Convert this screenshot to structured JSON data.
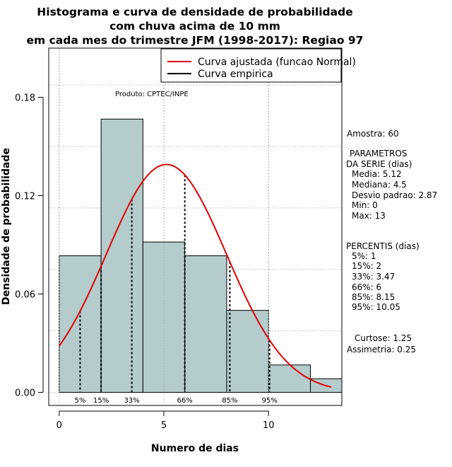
{
  "chart_data": {
    "type": "histogram",
    "title_lines": [
      "Histograma e curva de densidade de probabilidade",
      "com chuva acima de 10 mm",
      "em cada mes do trimestre JFM (1998-2017): Regiao 97"
    ],
    "xlabel": "Numero de dias",
    "ylabel": "Densidade de probabilidade",
    "xlim": [
      -0.5,
      13.5
    ],
    "ylim": [
      -0.008,
      0.21
    ],
    "x_ticks": [
      0,
      5,
      10
    ],
    "y_ticks": [
      0.0,
      0.06,
      0.12,
      0.18
    ],
    "y_tick_labels": [
      "0.00",
      "0.06",
      "0.12",
      "0.18"
    ],
    "bars": [
      {
        "x0": 0,
        "x1": 2,
        "value": 0.0833
      },
      {
        "x0": 2,
        "x1": 4,
        "value": 0.1667
      },
      {
        "x0": 4,
        "x1": 6,
        "value": 0.0917
      },
      {
        "x0": 6,
        "x1": 8,
        "value": 0.0833
      },
      {
        "x0": 8,
        "x1": 10,
        "value": 0.05
      },
      {
        "x0": 10,
        "x1": 12,
        "value": 0.0167
      },
      {
        "x0": 12,
        "x1": 14,
        "value": 0.0083
      }
    ],
    "bar_color": "#b5cccc",
    "curve_color": "#e00000",
    "normal_fit": {
      "mean": 5.12,
      "sd": 2.87,
      "x_from": 0,
      "x_to": 13
    },
    "legend": {
      "position": "top-right",
      "entries": [
        {
          "label": "Curva ajustada (funcao Normal)",
          "color": "#e00000"
        },
        {
          "label": "Curva empirica",
          "color": "#000000"
        }
      ]
    },
    "product_note": "Produto: CPTEC/INPE",
    "percentiles": [
      {
        "label": "5%",
        "x": 1
      },
      {
        "label": "15%",
        "x": 2
      },
      {
        "label": "33%",
        "x": 3.47
      },
      {
        "label": "66%",
        "x": 6
      },
      {
        "label": "85%",
        "x": 8.15
      },
      {
        "label": "95%",
        "x": 10.05
      }
    ],
    "side_panel": {
      "amostra": "Amostra: 60",
      "params_header_1": "PARAMETROS",
      "params_header_2": "DA SERIE (dias)",
      "params": [
        "Media: 5.12",
        "Mediana: 4.5",
        "Desvio padrao: 2.87",
        "Min: 0",
        "Max: 13"
      ],
      "percentis_header": "PERCENTIS (dias)",
      "percentis": [
        "5%: 1",
        "15%: 2",
        "33%: 3.47",
        "66%: 6",
        "85%: 8.15",
        "95%: 10.05"
      ],
      "curtose": "Curtose: 1.25",
      "assimetria": "Assimetria: 0.25"
    }
  }
}
